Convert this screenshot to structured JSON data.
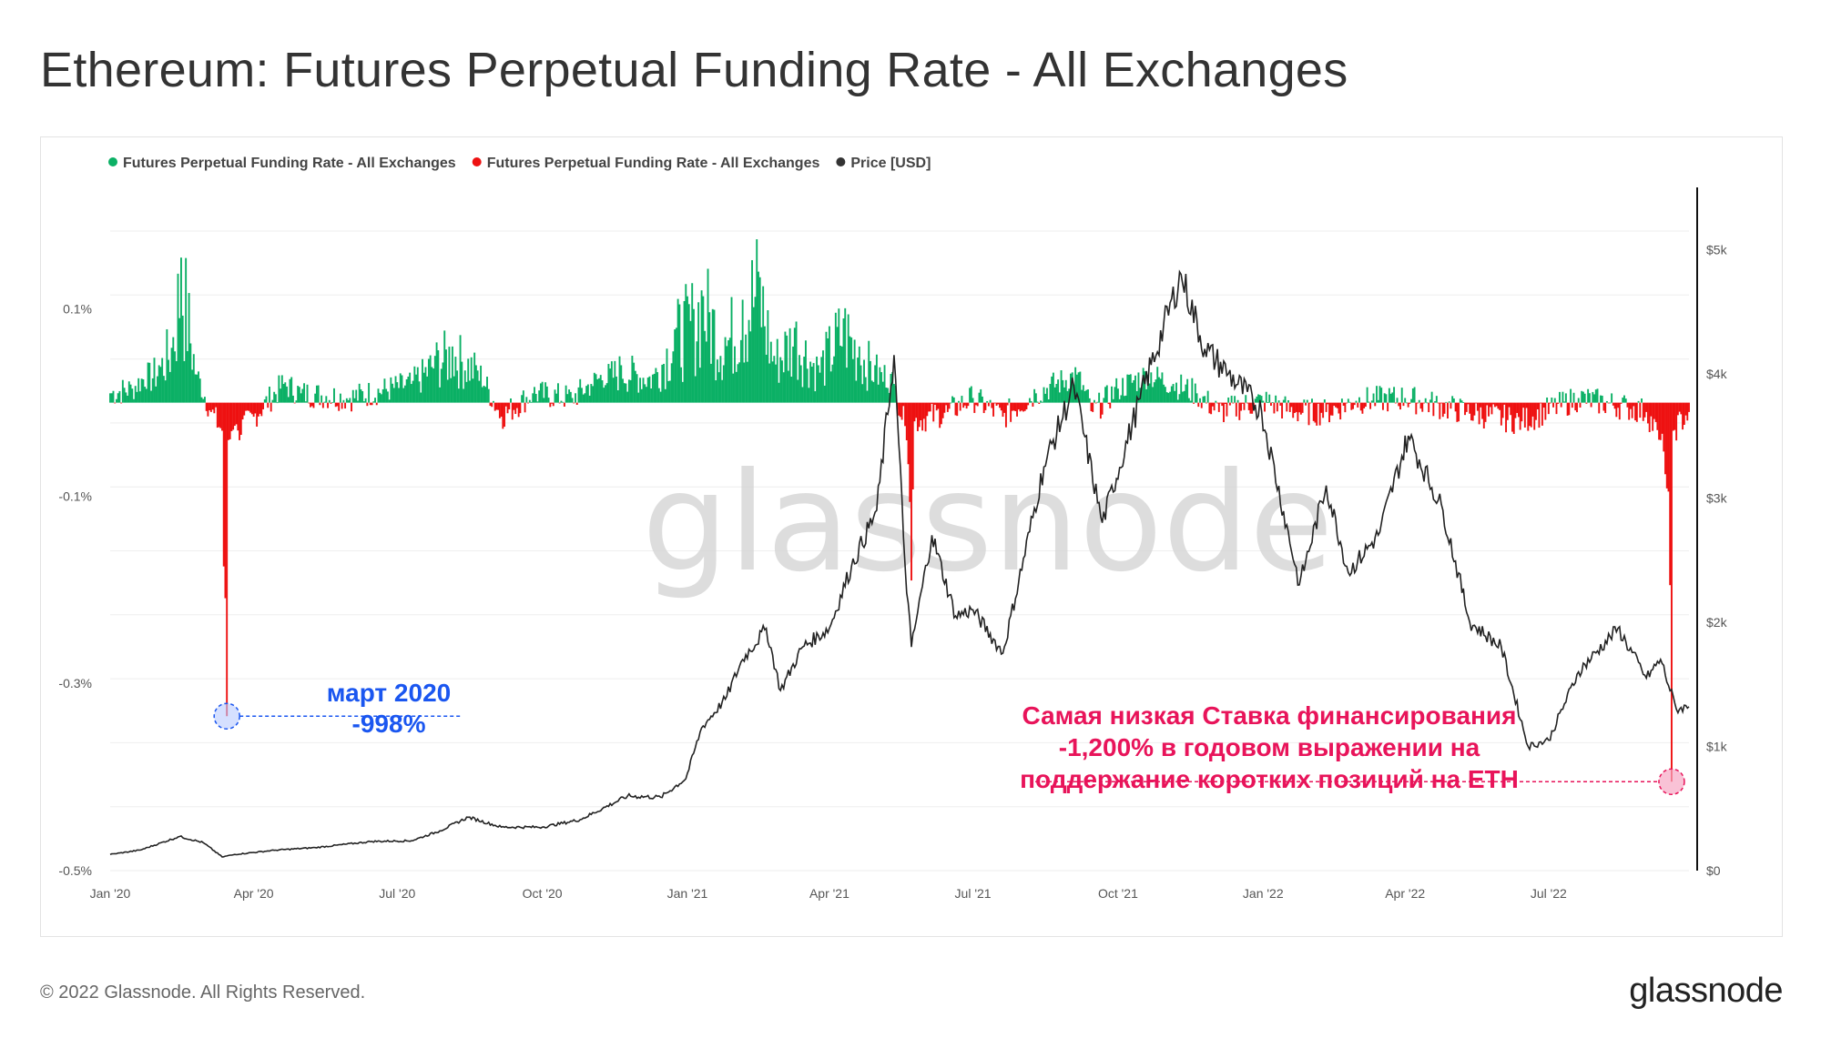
{
  "title": "Ethereum: Futures Perpetual Funding Rate - All Exchanges",
  "footer": {
    "copyright": "© 2022 Glassnode. All Rights Reserved.",
    "logo": "glassnode"
  },
  "watermark": "glassnode",
  "colors": {
    "positive": "#0bb065",
    "negative": "#ee1111",
    "price": "#222222",
    "annotation_blue": "#1a56f0",
    "annotation_red": "#e8145a"
  },
  "chart_data": {
    "type": "bar",
    "legend_position": "top-left",
    "grid": true,
    "legend": [
      {
        "label": "Futures Perpetual Funding Rate - All Exchanges",
        "color": "#0bb065"
      },
      {
        "label": "Futures Perpetual Funding Rate - All Exchanges",
        "color": "#ee1111"
      },
      {
        "label": "Price [USD]",
        "color": "#333333"
      }
    ],
    "x_ticks": [
      {
        "label": "Jan '20",
        "date": "2020-01-01"
      },
      {
        "label": "Apr '20",
        "date": "2020-04-01"
      },
      {
        "label": "Jul '20",
        "date": "2020-07-01"
      },
      {
        "label": "Oct '20",
        "date": "2020-10-01"
      },
      {
        "label": "Jan '21",
        "date": "2021-01-01"
      },
      {
        "label": "Apr '21",
        "date": "2021-04-01"
      },
      {
        "label": "Jul '21",
        "date": "2021-07-01"
      },
      {
        "label": "Oct '21",
        "date": "2021-10-01"
      },
      {
        "label": "Jan '22",
        "date": "2022-01-01"
      },
      {
        "label": "Apr '22",
        "date": "2022-04-01"
      },
      {
        "label": "Jul '22",
        "date": "2022-07-01"
      }
    ],
    "x_range": [
      "2020-01-01",
      "2022-09-28"
    ],
    "left_axis": {
      "ticks": [
        {
          "label": "0.1%",
          "value": 0.1
        },
        {
          "label": "-0.1%",
          "value": -0.1
        },
        {
          "label": "-0.3%",
          "value": -0.3
        },
        {
          "label": "-0.5%",
          "value": -0.5
        }
      ],
      "range": [
        -0.5,
        0.23
      ]
    },
    "right_axis": {
      "ticks": [
        {
          "label": "$0",
          "value": 0
        },
        {
          "label": "$1k",
          "value": 1000
        },
        {
          "label": "$2k",
          "value": 2000
        },
        {
          "label": "$3k",
          "value": 3000
        },
        {
          "label": "$4k",
          "value": 4000
        },
        {
          "label": "$5k",
          "value": 5000
        }
      ],
      "range": [
        0,
        5500
      ]
    },
    "funding_rate": [
      [
        "2020-01-01",
        0.01
      ],
      [
        "2020-01-15",
        0.015
      ],
      [
        "2020-02-01",
        0.04
      ],
      [
        "2020-02-10",
        0.07
      ],
      [
        "2020-02-15",
        0.155
      ],
      [
        "2020-02-25",
        0.03
      ],
      [
        "2020-03-05",
        -0.01
      ],
      [
        "2020-03-12",
        -0.03
      ],
      [
        "2020-03-13",
        -0.175
      ],
      [
        "2020-03-15",
        -0.335
      ],
      [
        "2020-03-16",
        -0.04
      ],
      [
        "2020-04-01",
        -0.015
      ],
      [
        "2020-04-20",
        0.02
      ],
      [
        "2020-05-01",
        0.01
      ],
      [
        "2020-06-01",
        0.005
      ],
      [
        "2020-07-10",
        0.02
      ],
      [
        "2020-07-25",
        0.05
      ],
      [
        "2020-08-05",
        0.06
      ],
      [
        "2020-08-20",
        0.04
      ],
      [
        "2020-09-05",
        -0.015
      ],
      [
        "2020-09-25",
        0.01
      ],
      [
        "2020-10-20",
        0.005
      ],
      [
        "2020-11-01",
        0.02
      ],
      [
        "2020-11-20",
        0.04
      ],
      [
        "2020-12-10",
        0.03
      ],
      [
        "2020-12-25",
        0.08
      ],
      [
        "2021-01-05",
        0.1
      ],
      [
        "2021-01-10",
        0.12
      ],
      [
        "2021-01-25",
        0.07
      ],
      [
        "2021-02-05",
        0.11
      ],
      [
        "2021-02-15",
        0.14
      ],
      [
        "2021-02-25",
        0.05
      ],
      [
        "2021-03-10",
        0.08
      ],
      [
        "2021-03-25",
        0.04
      ],
      [
        "2021-04-10",
        0.09
      ],
      [
        "2021-04-20",
        0.06
      ],
      [
        "2021-04-30",
        0.04
      ],
      [
        "2021-05-12",
        0.02
      ],
      [
        "2021-05-19",
        -0.025
      ],
      [
        "2021-05-23",
        -0.19
      ],
      [
        "2021-05-25",
        -0.02
      ],
      [
        "2021-06-15",
        -0.01
      ],
      [
        "2021-07-01",
        0.005
      ],
      [
        "2021-07-20",
        -0.015
      ],
      [
        "2021-08-10",
        0.01
      ],
      [
        "2021-09-05",
        0.03
      ],
      [
        "2021-09-15",
        -0.01
      ],
      [
        "2021-10-01",
        0.015
      ],
      [
        "2021-10-20",
        0.03
      ],
      [
        "2021-11-05",
        0.02
      ],
      [
        "2021-11-20",
        0.01
      ],
      [
        "2021-12-04",
        -0.01
      ],
      [
        "2022-01-01",
        0.002
      ],
      [
        "2022-01-22",
        -0.01
      ],
      [
        "2022-02-10",
        -0.01
      ],
      [
        "2022-03-01",
        0.002
      ],
      [
        "2022-04-01",
        0.005
      ],
      [
        "2022-05-10",
        -0.01
      ],
      [
        "2022-06-14",
        -0.02
      ],
      [
        "2022-07-20",
        0.005
      ],
      [
        "2022-08-20",
        -0.005
      ],
      [
        "2022-09-01",
        -0.01
      ],
      [
        "2022-09-10",
        -0.04
      ],
      [
        "2022-09-15",
        -0.095
      ],
      [
        "2022-09-16",
        -0.195
      ],
      [
        "2022-09-17",
        -0.405
      ],
      [
        "2022-09-18",
        -0.03
      ],
      [
        "2022-09-28",
        -0.01
      ]
    ],
    "price": [
      [
        "2020-01-01",
        130
      ],
      [
        "2020-01-20",
        165
      ],
      [
        "2020-02-14",
        275
      ],
      [
        "2020-02-29",
        225
      ],
      [
        "2020-03-12",
        110
      ],
      [
        "2020-03-20",
        130
      ],
      [
        "2020-04-15",
        165
      ],
      [
        "2020-05-10",
        185
      ],
      [
        "2020-06-15",
        235
      ],
      [
        "2020-07-10",
        240
      ],
      [
        "2020-07-28",
        320
      ],
      [
        "2020-08-15",
        430
      ],
      [
        "2020-09-05",
        350
      ],
      [
        "2020-10-01",
        350
      ],
      [
        "2020-10-25",
        410
      ],
      [
        "2020-11-24",
        600
      ],
      [
        "2020-12-15",
        590
      ],
      [
        "2020-12-31",
        740
      ],
      [
        "2021-01-10",
        1150
      ],
      [
        "2021-01-25",
        1380
      ],
      [
        "2021-02-05",
        1700
      ],
      [
        "2021-02-20",
        1950
      ],
      [
        "2021-03-01",
        1450
      ],
      [
        "2021-03-15",
        1800
      ],
      [
        "2021-04-01",
        1950
      ],
      [
        "2021-04-15",
        2450
      ],
      [
        "2021-05-01",
        2900
      ],
      [
        "2021-05-12",
        4150
      ],
      [
        "2021-05-19",
        2450
      ],
      [
        "2021-05-23",
        1800
      ],
      [
        "2021-06-05",
        2700
      ],
      [
        "2021-06-20",
        2050
      ],
      [
        "2021-07-01",
        2100
      ],
      [
        "2021-07-20",
        1750
      ],
      [
        "2021-08-15",
        3250
      ],
      [
        "2021-09-03",
        3900
      ],
      [
        "2021-09-21",
        2800
      ],
      [
        "2021-10-15",
        3800
      ],
      [
        "2021-11-10",
        4800
      ],
      [
        "2021-11-25",
        4200
      ],
      [
        "2021-12-10",
        4000
      ],
      [
        "2021-12-31",
        3700
      ],
      [
        "2022-01-24",
        2300
      ],
      [
        "2022-02-10",
        3100
      ],
      [
        "2022-02-24",
        2400
      ],
      [
        "2022-03-15",
        2700
      ],
      [
        "2022-04-03",
        3500
      ],
      [
        "2022-04-25",
        2900
      ],
      [
        "2022-05-12",
        2000
      ],
      [
        "2022-06-01",
        1800
      ],
      [
        "2022-06-18",
        1000
      ],
      [
        "2022-07-01",
        1050
      ],
      [
        "2022-07-20",
        1600
      ],
      [
        "2022-08-14",
        1950
      ],
      [
        "2022-09-01",
        1550
      ],
      [
        "2022-09-10",
        1700
      ],
      [
        "2022-09-20",
        1300
      ],
      [
        "2022-09-28",
        1320
      ]
    ],
    "annotations": [
      {
        "lines": [
          "март 2020",
          "-998%"
        ],
        "date": "2020-03-15",
        "value": -0.335,
        "color": "#1a56f0"
      },
      {
        "lines": [
          "Самая низкая Ставка финансирования",
          "-1,200% в годовом выражении на",
          "поддержание коротких позиций на ETH"
        ],
        "date": "2022-09-17",
        "value": -0.405,
        "color": "#e8145a"
      }
    ]
  }
}
